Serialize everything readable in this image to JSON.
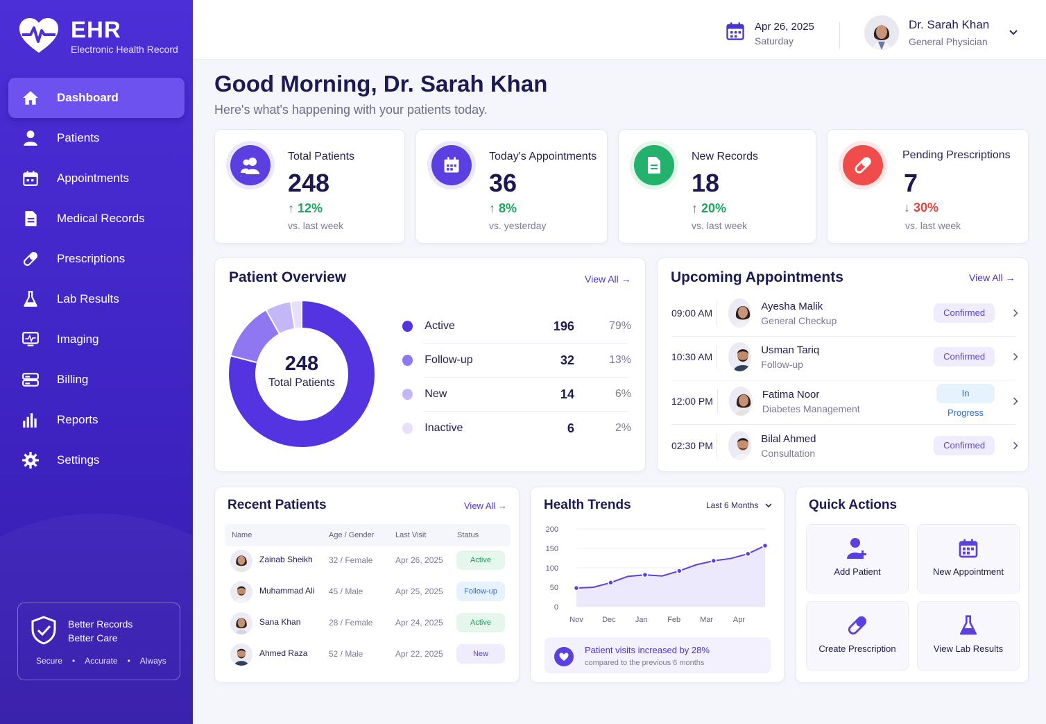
{
  "app": {
    "title": "EHR",
    "subtitle": "Electronic Health Record"
  },
  "sidebar": {
    "items": [
      {
        "label": "Dashboard",
        "icon": "home-icon",
        "active": true
      },
      {
        "label": "Patients",
        "icon": "user-icon"
      },
      {
        "label": "Appointments",
        "icon": "calendar-icon"
      },
      {
        "label": "Medical Records",
        "icon": "document-icon"
      },
      {
        "label": "Prescriptions",
        "icon": "pill-icon"
      },
      {
        "label": "Lab Results",
        "icon": "flask-icon"
      },
      {
        "label": "Imaging",
        "icon": "monitor-icon"
      },
      {
        "label": "Billing",
        "icon": "billing-icon"
      },
      {
        "label": "Reports",
        "icon": "bar-chart-icon"
      },
      {
        "label": "Settings",
        "icon": "gear-icon"
      }
    ],
    "promo": {
      "line1": "Better Records",
      "line2": "Better Care",
      "tags": [
        "Secure",
        "Accurate",
        "Always"
      ]
    }
  },
  "header": {
    "date": "Apr 26, 2025",
    "day": "Saturday",
    "user_name": "Dr. Sarah Khan",
    "user_role": "General Physician"
  },
  "greeting": {
    "title": "Good Morning, Dr. Sarah Khan",
    "subtitle": "Here's what's happening with your patients today."
  },
  "stats": [
    {
      "label": "Total Patients",
      "value": "248",
      "change": "12%",
      "direction": "up",
      "compare": "vs. last week",
      "color": "#5b3fe0",
      "icon": "users-icon"
    },
    {
      "label": "Today's Appointments",
      "value": "36",
      "change": "8%",
      "direction": "up",
      "compare": "vs. yesterday",
      "color": "#5b3fe0",
      "icon": "calendar-icon"
    },
    {
      "label": "New Records",
      "value": "18",
      "change": "20%",
      "direction": "up",
      "compare": "vs. last week",
      "color": "#22b26b",
      "icon": "document-icon"
    },
    {
      "label": "Pending Prescriptions",
      "value": "7",
      "change": "30%",
      "direction": "down",
      "compare": "vs. last week",
      "color": "#f04c4c",
      "icon": "pill-icon"
    }
  ],
  "patient_overview": {
    "title": "Patient Overview",
    "view_all": "View All",
    "center_value": "248",
    "center_label": "Total Patients",
    "segments": [
      {
        "name": "Active",
        "count": "196",
        "percent": "79%",
        "value": 196,
        "color": "#5433e0"
      },
      {
        "name": "Follow-up",
        "count": "32",
        "percent": "13%",
        "value": 32,
        "color": "#9077f2"
      },
      {
        "name": "New",
        "count": "14",
        "percent": "6%",
        "value": 14,
        "color": "#c4b7f7"
      },
      {
        "name": "Inactive",
        "count": "6",
        "percent": "2%",
        "value": 6,
        "color": "#e6e0fb"
      }
    ]
  },
  "appointments": {
    "title": "Upcoming Appointments",
    "view_all": "View All",
    "items": [
      {
        "time": "09:00 AM",
        "name": "Ayesha Malik",
        "type": "General Checkup",
        "status": "Confirmed",
        "kind": "conf"
      },
      {
        "time": "10:30 AM",
        "name": "Usman Tariq",
        "type": "Follow-up",
        "status": "Confirmed",
        "kind": "conf"
      },
      {
        "time": "12:00 PM",
        "name": "Fatima Noor",
        "type": "Diabetes Management",
        "status": "In Progress",
        "kind": "prog"
      },
      {
        "time": "02:30 PM",
        "name": "Bilal Ahmed",
        "type": "Consultation",
        "status": "Confirmed",
        "kind": "conf"
      }
    ]
  },
  "recent_patients": {
    "title": "Recent Patients",
    "view_all": "View All",
    "columns": [
      "Name",
      "Age / Gender",
      "Last Visit",
      "Status"
    ],
    "rows": [
      {
        "name": "Zainab Sheikh",
        "age_gender": "32 / Female",
        "last_visit": "Apr 26, 2025",
        "status": "Active",
        "kind": "act"
      },
      {
        "name": "Muhammad Ali",
        "age_gender": "45 / Male",
        "last_visit": "Apr 25, 2025",
        "status": "Follow-up",
        "kind": "fol"
      },
      {
        "name": "Sana Khan",
        "age_gender": "28 / Female",
        "last_visit": "Apr 24, 2025",
        "status": "Active",
        "kind": "act"
      },
      {
        "name": "Ahmed Raza",
        "age_gender": "52 / Male",
        "last_visit": "Apr 22, 2025",
        "status": "New",
        "kind": "new"
      }
    ]
  },
  "health_trends": {
    "title": "Health Trends",
    "range": "Last 6 Months",
    "note_title": "Patient visits increased by 28%",
    "note_sub": "compared to the previous 6 months"
  },
  "chart_data": {
    "type": "area",
    "title": "Health Trends",
    "x": [
      "Nov",
      "Dec",
      "Jan",
      "Feb",
      "Mar",
      "Apr"
    ],
    "yticks": [
      0,
      50,
      100,
      150,
      200
    ],
    "ylim": [
      0,
      200
    ],
    "grid": true,
    "points": [
      {
        "x": "Nov",
        "y": 48
      },
      {
        "x": "Nov-Dec",
        "y": 50
      },
      {
        "x": "Dec",
        "y": 62
      },
      {
        "x": "Dec-Jan",
        "y": 78
      },
      {
        "x": "Jan",
        "y": 82
      },
      {
        "x": "Jan-Feb",
        "y": 79
      },
      {
        "x": "Feb",
        "y": 92
      },
      {
        "x": "Feb-Mar",
        "y": 108
      },
      {
        "x": "Mar",
        "y": 118
      },
      {
        "x": "Mar-Apr",
        "y": 124
      },
      {
        "x": "Apr",
        "y": 136
      },
      {
        "x": "Apr-end",
        "y": 157
      }
    ],
    "color": "#5b3fe0"
  },
  "quick_actions": {
    "title": "Quick Actions",
    "items": [
      {
        "label": "Add Patient",
        "icon": "add-user-icon"
      },
      {
        "label": "New Appointment",
        "icon": "calendar-icon"
      },
      {
        "label": "Create Prescription",
        "icon": "pill-icon"
      },
      {
        "label": "View Lab Results",
        "icon": "flask-icon"
      }
    ]
  }
}
